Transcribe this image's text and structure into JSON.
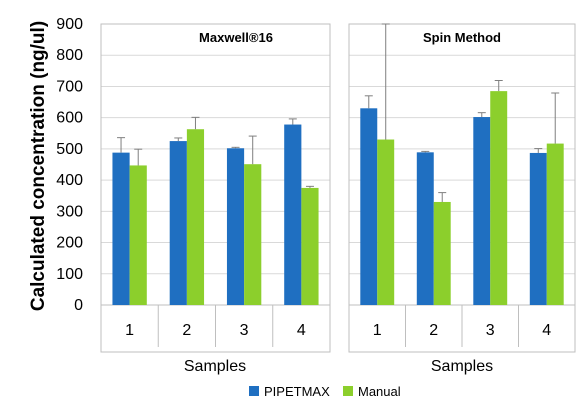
{
  "chart_data": {
    "type": "bar",
    "ylabel": "Calculated concentration (ng/ul)",
    "ylim": [
      0,
      900
    ],
    "yticks": [
      0,
      100,
      200,
      300,
      400,
      500,
      600,
      700,
      800,
      900
    ],
    "grid": true,
    "legend_position": "bottom",
    "series_colors": [
      "#1f6fc1",
      "#8ccf2c"
    ],
    "legend": [
      "PIPETMAX",
      "Manual"
    ],
    "panels": [
      {
        "title": "Maxwell®16",
        "xlabel": "Samples",
        "categories": [
          "1",
          "2",
          "3",
          "4"
        ],
        "series": [
          {
            "name": "PIPETMAX",
            "values": [
              488,
              525,
              502,
              578
            ],
            "errors": [
              48,
              10,
              3,
              18
            ]
          },
          {
            "name": "Manual",
            "values": [
              447,
              563,
              451,
              375
            ],
            "errors": [
              52,
              38,
              90,
              5
            ]
          }
        ]
      },
      {
        "title": "Spin Method",
        "xlabel": "Samples",
        "categories": [
          "1",
          "2",
          "3",
          "4"
        ],
        "series": [
          {
            "name": "PIPETMAX",
            "values": [
              630,
              489,
              602,
              487
            ],
            "errors": [
              40,
              3,
              14,
              14
            ]
          },
          {
            "name": "Manual",
            "values": [
              530,
              330,
              685,
              517
            ],
            "errors": [
              400,
              30,
              34,
              162
            ]
          }
        ]
      }
    ]
  }
}
